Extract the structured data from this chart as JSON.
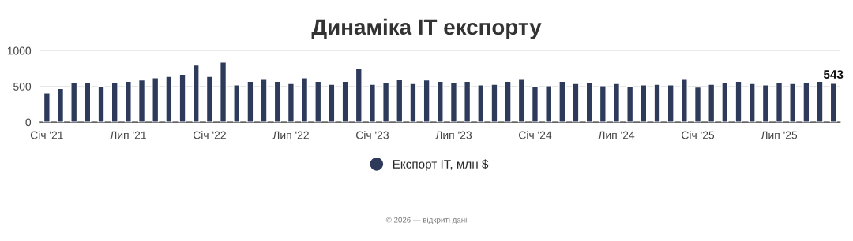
{
  "chart_data": {
    "type": "bar",
    "title": "Динаміка IT експорту",
    "categories": [
      "Січ '21",
      null,
      null,
      null,
      null,
      null,
      "Лип '21",
      null,
      null,
      null,
      null,
      null,
      "Січ '22",
      null,
      null,
      null,
      null,
      null,
      "Лип '22",
      null,
      null,
      null,
      null,
      null,
      "Січ '23",
      null,
      null,
      null,
      null,
      null,
      "Лип '23",
      null,
      null,
      null,
      null,
      null,
      "Січ '24",
      null,
      null,
      null,
      null,
      null,
      "Лип '24",
      null,
      null,
      null,
      null,
      null,
      "Січ '25",
      null,
      null,
      null,
      null,
      null,
      "Лип '25",
      null,
      null,
      null,
      null
    ],
    "series": [
      {
        "name": "Експорт IT, млн $",
        "color": "#2d3a5a",
        "values": [
          410,
          470,
          550,
          560,
          500,
          550,
          570,
          590,
          620,
          640,
          670,
          800,
          640,
          840,
          520,
          570,
          610,
          570,
          540,
          620,
          570,
          530,
          570,
          750,
          530,
          550,
          600,
          540,
          590,
          570,
          560,
          570,
          520,
          530,
          570,
          610,
          500,
          510,
          570,
          540,
          560,
          510,
          540,
          500,
          520,
          530,
          520,
          610,
          490,
          530,
          550,
          570,
          540,
          520,
          560,
          540,
          560,
          570,
          543
        ],
        "value_labels": [
          null,
          null,
          null,
          null,
          null,
          null,
          null,
          null,
          null,
          null,
          null,
          null,
          null,
          null,
          null,
          null,
          null,
          null,
          null,
          null,
          null,
          null,
          null,
          null,
          null,
          null,
          null,
          null,
          null,
          null,
          null,
          null,
          null,
          null,
          null,
          null,
          null,
          null,
          null,
          null,
          null,
          null,
          null,
          null,
          null,
          null,
          null,
          null,
          null,
          null,
          null,
          null,
          null,
          null,
          null,
          null,
          null,
          null,
          "543"
        ]
      }
    ],
    "ylim": [
      0,
      1000
    ],
    "yticks": [
      0,
      500,
      1000
    ],
    "grid": "y",
    "legend": "bottom",
    "annotations": [
      "© 2026 — відкриті дані"
    ]
  }
}
